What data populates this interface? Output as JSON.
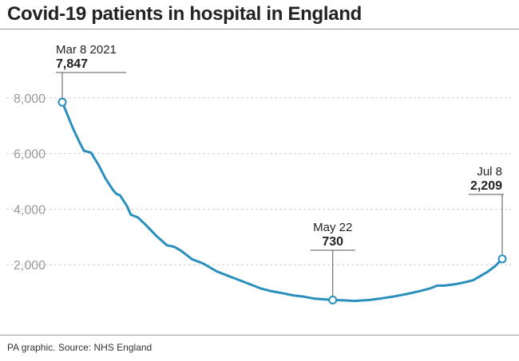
{
  "header": {
    "title": "Covid-19 patients in hospital in England"
  },
  "footer": {
    "source": "PA graphic. Source: NHS England"
  },
  "colors": {
    "line": "#2a8fbd",
    "grid": "#cfcfcf",
    "text": "#222222",
    "tick": "#9a9a9a"
  },
  "chart_data": {
    "type": "line",
    "title": "Covid-19 patients in hospital in England",
    "xlabel": "",
    "ylabel": "",
    "x_range": [
      "2021-03-08",
      "2021-07-08"
    ],
    "ylim": [
      0,
      8800
    ],
    "yticks": [
      2000,
      4000,
      6000,
      8000
    ],
    "ytick_labels": [
      "2,000",
      "4,000",
      "6,000",
      "8,000"
    ],
    "grid": true,
    "series": [
      {
        "points": [
          [
            "2021-03-08",
            7847
          ],
          [
            "2021-03-11",
            6900
          ],
          [
            "2021-03-13",
            6350
          ],
          [
            "2021-03-14",
            6100
          ],
          [
            "2021-03-16",
            6030
          ],
          [
            "2021-03-18",
            5600
          ],
          [
            "2021-03-20",
            5100
          ],
          [
            "2021-03-22",
            4700
          ],
          [
            "2021-03-23",
            4550
          ],
          [
            "2021-03-24",
            4500
          ],
          [
            "2021-03-26",
            4100
          ],
          [
            "2021-03-27",
            3800
          ],
          [
            "2021-03-29",
            3700
          ],
          [
            "2021-03-31",
            3450
          ],
          [
            "2021-04-03",
            3050
          ],
          [
            "2021-04-06",
            2700
          ],
          [
            "2021-04-08",
            2650
          ],
          [
            "2021-04-10",
            2500
          ],
          [
            "2021-04-13",
            2200
          ],
          [
            "2021-04-16",
            2050
          ],
          [
            "2021-04-20",
            1750
          ],
          [
            "2021-04-23",
            1600
          ],
          [
            "2021-04-26",
            1450
          ],
          [
            "2021-04-29",
            1300
          ],
          [
            "2021-05-02",
            1150
          ],
          [
            "2021-05-05",
            1050
          ],
          [
            "2021-05-08",
            980
          ],
          [
            "2021-05-11",
            900
          ],
          [
            "2021-05-14",
            850
          ],
          [
            "2021-05-17",
            780
          ],
          [
            "2021-05-20",
            750
          ],
          [
            "2021-05-22",
            730
          ],
          [
            "2021-05-25",
            720
          ],
          [
            "2021-05-28",
            700
          ],
          [
            "2021-06-01",
            730
          ],
          [
            "2021-06-04",
            780
          ],
          [
            "2021-06-08",
            860
          ],
          [
            "2021-06-12",
            960
          ],
          [
            "2021-06-15",
            1050
          ],
          [
            "2021-06-18",
            1150
          ],
          [
            "2021-06-20",
            1250
          ],
          [
            "2021-06-22",
            1250
          ],
          [
            "2021-06-25",
            1300
          ],
          [
            "2021-06-28",
            1380
          ],
          [
            "2021-06-30",
            1450
          ],
          [
            "2021-07-02",
            1600
          ],
          [
            "2021-07-04",
            1750
          ],
          [
            "2021-07-06",
            1950
          ],
          [
            "2021-07-08",
            2209
          ]
        ]
      }
    ],
    "annotations": [
      {
        "date_label": "Mar 8 2021",
        "value_label": "7,847",
        "x": "2021-03-08",
        "y": 7847,
        "align": "left"
      },
      {
        "date_label": "May 22",
        "value_label": "730",
        "x": "2021-05-22",
        "y": 730,
        "align": "center"
      },
      {
        "date_label": "Jul 8",
        "value_label": "2,209",
        "x": "2021-07-08",
        "y": 2209,
        "align": "right"
      }
    ]
  }
}
